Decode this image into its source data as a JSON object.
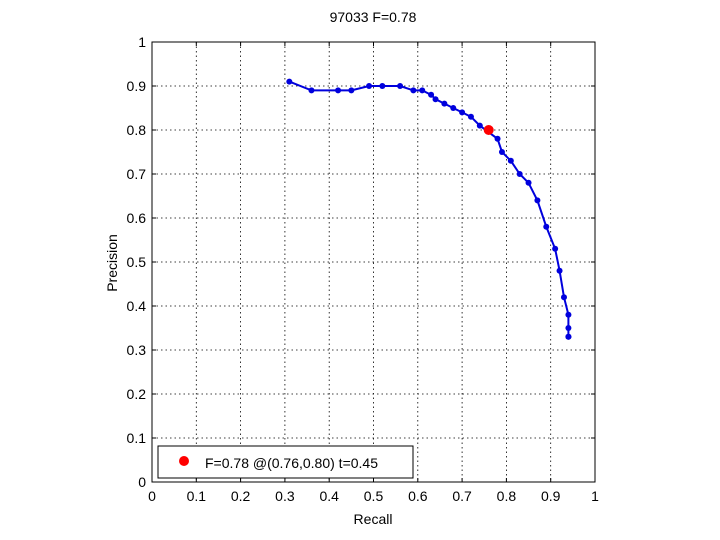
{
  "chart_data": {
    "type": "line",
    "title": "97033 F=0.78",
    "xlabel": "Recall",
    "ylabel": "Precision",
    "xlim": [
      0,
      1
    ],
    "ylim": [
      0,
      1
    ],
    "xticks": [
      "0",
      "0.1",
      "0.2",
      "0.3",
      "0.4",
      "0.5",
      "0.6",
      "0.7",
      "0.8",
      "0.9",
      "1"
    ],
    "yticks": [
      "0",
      "0.1",
      "0.2",
      "0.3",
      "0.4",
      "0.5",
      "0.6",
      "0.7",
      "0.8",
      "0.9",
      "1"
    ],
    "grid": true,
    "legend_position": "bottom-left",
    "series": [
      {
        "color": "#0000dd",
        "x": [
          0.31,
          0.36,
          0.42,
          0.45,
          0.49,
          0.52,
          0.56,
          0.59,
          0.61,
          0.63,
          0.64,
          0.66,
          0.68,
          0.7,
          0.72,
          0.74,
          0.78,
          0.79,
          0.81,
          0.83,
          0.85,
          0.87,
          0.89,
          0.91,
          0.92,
          0.93,
          0.94,
          0.94,
          0.94,
          0.94
        ],
        "y": [
          0.91,
          0.89,
          0.89,
          0.89,
          0.9,
          0.9,
          0.9,
          0.89,
          0.89,
          0.88,
          0.87,
          0.86,
          0.85,
          0.84,
          0.83,
          0.81,
          0.78,
          0.75,
          0.73,
          0.7,
          0.68,
          0.64,
          0.58,
          0.53,
          0.48,
          0.42,
          0.38,
          0.35,
          0.33,
          0.33
        ]
      }
    ],
    "highlight": {
      "x": 0.76,
      "y": 0.8,
      "color": "#ff0000",
      "label": "F=0.78 @(0.76,0.80) t=0.45"
    }
  }
}
